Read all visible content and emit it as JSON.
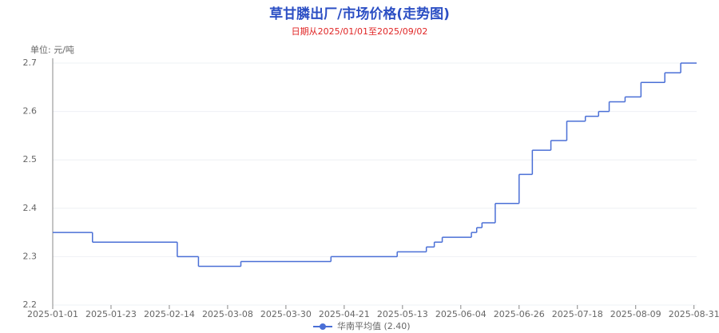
{
  "chart_data": {
    "type": "line",
    "step": true,
    "title": "草甘膦出厂/市场价格(走势图)",
    "subtitle": "日期从2025/01/01至2025/09/02",
    "y_label": "单位: 元/吨",
    "x": [
      "2025-01-01",
      "2025-01-16",
      "2025-02-17",
      "2025-02-25",
      "2025-03-13",
      "2025-04-16",
      "2025-05-11",
      "2025-05-22",
      "2025-05-25",
      "2025-05-28",
      "2025-06-08",
      "2025-06-10",
      "2025-06-12",
      "2025-06-17",
      "2025-06-26",
      "2025-07-01",
      "2025-07-08",
      "2025-07-14",
      "2025-07-21",
      "2025-07-26",
      "2025-07-30",
      "2025-08-05",
      "2025-08-11",
      "2025-08-20",
      "2025-08-26",
      "2025-09-01"
    ],
    "series": [
      {
        "name": "华南平均值 (2.40)",
        "color": "#4a6fd6",
        "values": [
          2.35,
          2.33,
          2.3,
          2.28,
          2.29,
          2.3,
          2.31,
          2.32,
          2.33,
          2.34,
          2.35,
          2.36,
          2.37,
          2.41,
          2.47,
          2.52,
          2.54,
          2.58,
          2.59,
          2.6,
          2.62,
          2.63,
          2.66,
          2.68,
          2.7,
          2.7
        ]
      }
    ],
    "xlim": [
      "2025-01-01",
      "2025-09-01"
    ],
    "xticks": [
      "2025-01-01",
      "2025-01-23",
      "2025-02-14",
      "2025-03-08",
      "2025-03-30",
      "2025-04-21",
      "2025-05-13",
      "2025-06-04",
      "2025-06-26",
      "2025-07-18",
      "2025-08-09",
      "2025-08-31"
    ],
    "ylim": [
      2.2,
      2.7
    ],
    "yticks": [
      2.2,
      2.3,
      2.4,
      2.5,
      2.6,
      2.7
    ],
    "grid": true
  }
}
